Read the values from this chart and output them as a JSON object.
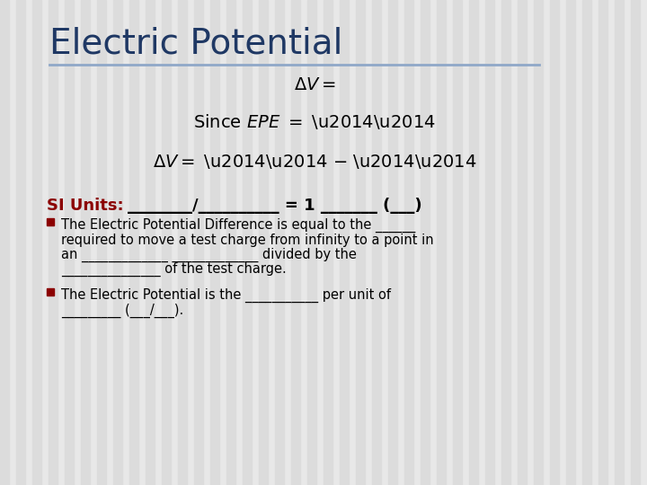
{
  "title": "Electric Potential",
  "title_color": "#1F3864",
  "title_fontsize": 28,
  "background_color": "#E8E8E8",
  "stripe_color": "#DCDCDC",
  "line_color": "#8FA8C8",
  "si_label": "SI Units:",
  "si_text": "________/__________ = 1 _______ (___)",
  "bullet_color": "#8B0000",
  "bullet1_line1": "The Electric Potential Difference is equal to the ______",
  "bullet1_line2": "required to move a test charge from infinity to a point in",
  "bullet1_line3": "an _____________ _____________ divided by the",
  "bullet1_line4": "_______________ of the test charge.",
  "bullet2_line1": "The Electric Potential is the ___________ per unit of",
  "bullet2_line2": "_________ (___/___)."
}
